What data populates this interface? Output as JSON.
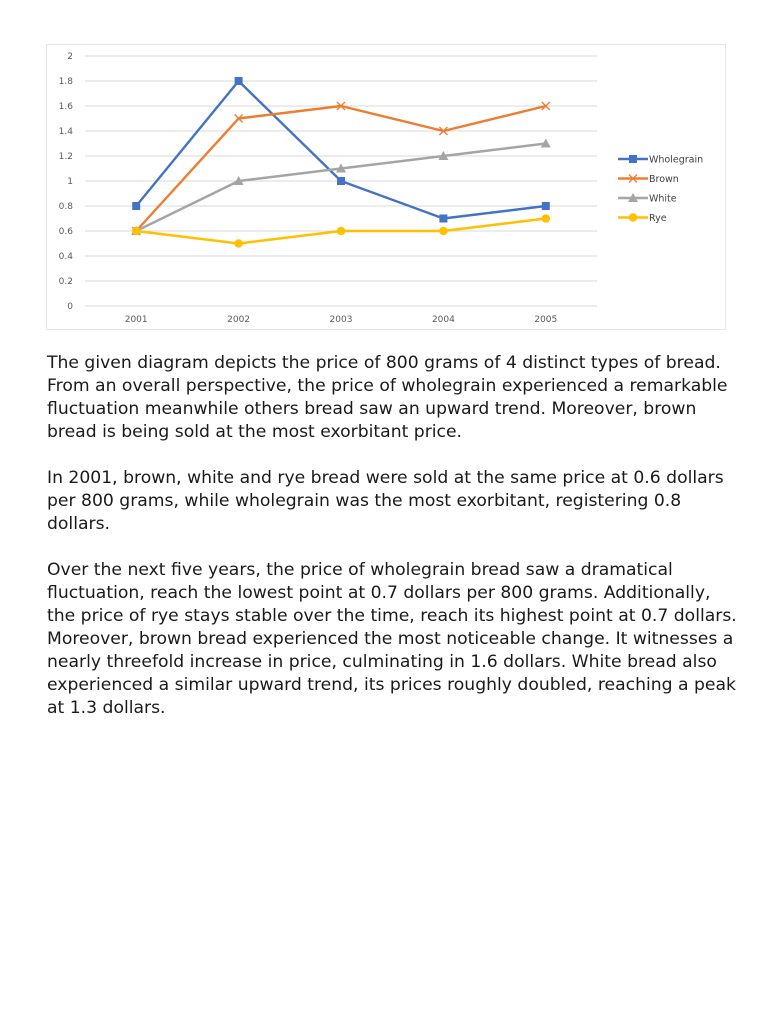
{
  "chart_data": {
    "type": "line",
    "title": "",
    "xlabel": "",
    "ylabel": "",
    "categories": [
      "2001",
      "2002",
      "2003",
      "2004",
      "2005"
    ],
    "ylim": [
      0,
      2
    ],
    "yticks": [
      "0",
      "0.2",
      "0.4",
      "0.6",
      "0.8",
      "1",
      "1.2",
      "1.4",
      "1.6",
      "1.8",
      "2"
    ],
    "grid": true,
    "legend": "right",
    "series": [
      {
        "name": "Wholegrain",
        "values": [
          0.8,
          1.8,
          1.0,
          0.7,
          0.8
        ],
        "color": "#4472c4",
        "marker": "square"
      },
      {
        "name": "Brown",
        "values": [
          0.6,
          1.5,
          1.6,
          1.4,
          1.6
        ],
        "color": "#ed7d31",
        "marker": "x"
      },
      {
        "name": "White",
        "values": [
          0.6,
          1.0,
          1.1,
          1.2,
          1.3
        ],
        "color": "#a5a5a5",
        "marker": "triangle"
      },
      {
        "name": "Rye",
        "values": [
          0.6,
          0.5,
          0.6,
          0.6,
          0.7
        ],
        "color": "#ffc000",
        "marker": "circle"
      }
    ]
  },
  "essay": {
    "p1": "The given diagram depicts the price of 800 grams of 4 distinct types of bread. From an overall perspective, the price of wholegrain experienced a remarkable fluctuation meanwhile others bread saw an upward trend. Moreover, brown bread is being sold at the most exorbitant price.",
    "p2": "In 2001, brown, white and rye bread were sold at the same price at 0.6 dollars per 800 grams, while wholegrain was the most exorbitant, registering 0.8 dollars.",
    "p3": "Over the next five years, the price of wholegrain bread saw a dramatical fluctuation, reach the lowest point at 0.7 dollars per 800 grams. Additionally, the price of rye stays stable over the time, reach its highest point at 0.7 dollars. Moreover, brown bread experienced the most noticeable change. It witnesses a nearly threefold increase in price, culminating in 1.6 dollars. White bread also experienced a similar upward trend, its prices roughly doubled, reaching a peak at 1.3 dollars."
  }
}
